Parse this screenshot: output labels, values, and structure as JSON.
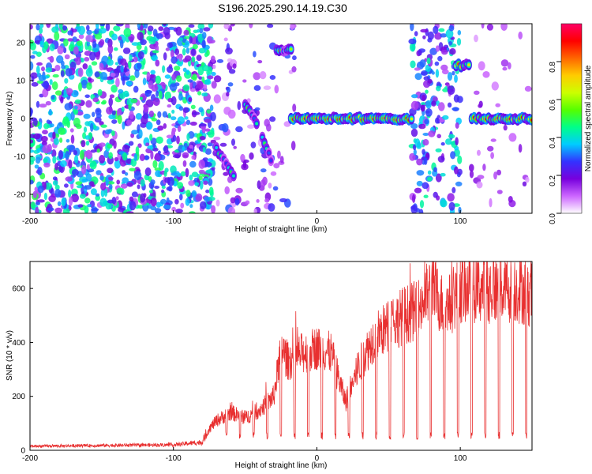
{
  "title": "S196.2025.290.14.19.C30",
  "chart_data": [
    {
      "type": "heatmap",
      "xlabel": "Height of straight line (km)",
      "ylabel": "Frequency (Hz)",
      "xlim": [
        -200,
        150
      ],
      "ylim": [
        -25,
        25
      ],
      "xticks": [
        -200,
        -100,
        0,
        100
      ],
      "yticks": [
        -20,
        -10,
        0,
        10,
        20
      ],
      "grid": false,
      "colorbar": {
        "label": "Normalized spectral amplitude",
        "range": [
          0.0,
          1.0
        ],
        "ticks": [
          0.0,
          0.2,
          0.4,
          0.6,
          0.8
        ],
        "colors": [
          "#ffffff",
          "#cc66ff",
          "#7700dd",
          "#3333ff",
          "#00ccff",
          "#00ff88",
          "#55ff00",
          "#ccff00",
          "#ffcc00",
          "#ff6600",
          "#ff0000",
          "#ff0066"
        ]
      },
      "noise_regions": [
        {
          "x": [
            -200,
            -72
          ],
          "density": 0.8,
          "amp": [
            0.1,
            0.5
          ]
        },
        {
          "x": [
            -72,
            -35
          ],
          "density": 0.2,
          "amp": [
            0.05,
            0.3
          ]
        },
        {
          "x": [
            -35,
            -15
          ],
          "density": 0.15,
          "amp": [
            0.05,
            0.3
          ]
        },
        {
          "x": [
            66,
            100
          ],
          "density": 0.55,
          "amp": [
            0.1,
            0.45
          ]
        },
        {
          "x": [
            105,
            150
          ],
          "density": 0.08,
          "amp": [
            0.05,
            0.2
          ]
        }
      ],
      "signal_segments": [
        {
          "x": [
            -70,
            -58
          ],
          "y": [
            -8,
            -15
          ],
          "amp": 0.5
        },
        {
          "x": [
            -50,
            -42
          ],
          "y": [
            4,
            -1
          ],
          "amp": 0.55
        },
        {
          "x": [
            -38,
            -32
          ],
          "y": [
            -5,
            -11
          ],
          "amp": 0.5
        },
        {
          "x": [
            -28,
            -18
          ],
          "y": [
            18,
            18
          ],
          "amp": 0.6
        },
        {
          "x": [
            -18,
            66
          ],
          "y": [
            0,
            0
          ],
          "amp": 0.95
        },
        {
          "x": [
            97,
            106
          ],
          "y": [
            14,
            14
          ],
          "amp": 0.85
        },
        {
          "x": [
            108,
            150
          ],
          "y": [
            0,
            0
          ],
          "amp": 0.95
        }
      ]
    },
    {
      "type": "line",
      "xlabel": "Height of straight line (km)",
      "ylabel": "SNR (10 * v/v)",
      "xlim": [
        -200,
        150
      ],
      "ylim": [
        0,
        700
      ],
      "xticks": [
        -200,
        -100,
        0,
        100
      ],
      "yticks": [
        0,
        200,
        400,
        600
      ],
      "color": "#e83030",
      "series": [
        {
          "x": [
            -200,
            -150,
            -100,
            -80,
            -75,
            -70,
            -60,
            -50,
            -40,
            -30,
            -25,
            -20,
            -10,
            0,
            10,
            20,
            30,
            40,
            50,
            60,
            70,
            80,
            90,
            100,
            110,
            120,
            130,
            140,
            150
          ],
          "values": [
            15,
            18,
            20,
            30,
            80,
            110,
            140,
            120,
            150,
            200,
            380,
            330,
            360,
            380,
            360,
            180,
            320,
            420,
            460,
            500,
            520,
            600,
            520,
            600,
            600,
            600,
            600,
            600,
            580
          ]
        }
      ],
      "dropouts": [
        {
          "x": [
            -72,
            150
          ],
          "min": 40,
          "period_km": 9.5
        }
      ]
    }
  ]
}
